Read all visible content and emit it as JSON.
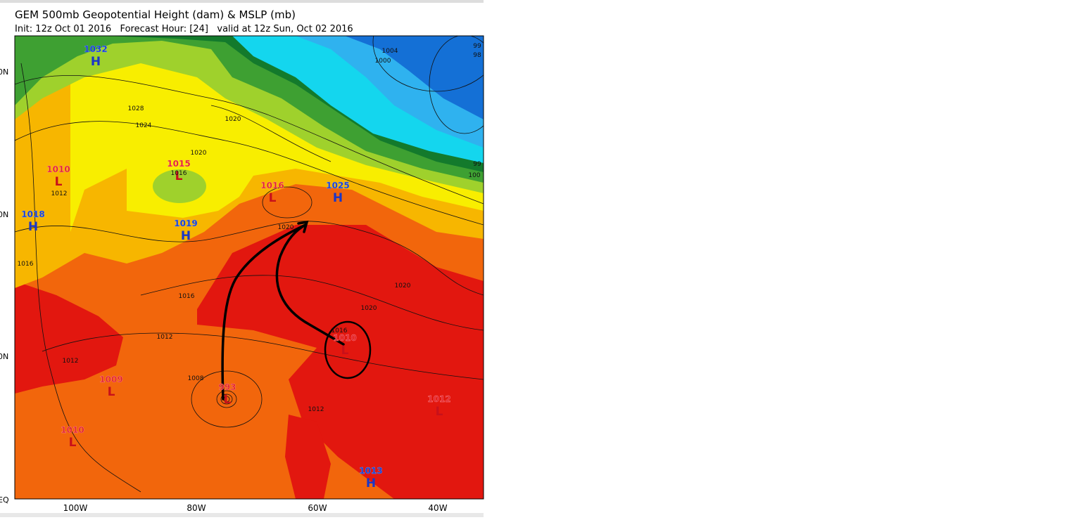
{
  "header": {
    "title": "GEM 500mb Geopotential Height (dam) & MSLP (mb)",
    "subtitle": "Init: 12z Oct 01 2016   Forecast Hour: [24]   valid at 12z Sun, Oct 02 2016"
  },
  "axes": {
    "lat_labels": [
      "0N",
      "0N",
      "0N",
      "EQ"
    ],
    "lon_labels": [
      "100W",
      "80W",
      "60W",
      "40W"
    ]
  },
  "centers": [
    {
      "value": "1032",
      "symbol": "H"
    },
    {
      "value": "1010",
      "symbol": "L"
    },
    {
      "value": "1018",
      "symbol": "H"
    },
    {
      "value": "1015",
      "symbol": "L"
    },
    {
      "value": "1019",
      "symbol": "H"
    },
    {
      "value": "1016",
      "symbol": "L"
    },
    {
      "value": "1025",
      "symbol": "H"
    },
    {
      "value": "1010",
      "symbol": "L"
    },
    {
      "value": "1009",
      "symbol": "L"
    },
    {
      "value": "993",
      "symbol": "L"
    },
    {
      "value": "1010",
      "symbol": "L"
    },
    {
      "value": "1012",
      "symbol": "L"
    },
    {
      "value": "1013",
      "symbol": "H"
    }
  ],
  "contour_labels": [
    "1004",
    "1000",
    "1028",
    "1024",
    "1020",
    "1020",
    "1016",
    "1012",
    "1016",
    "1020",
    "1020",
    "1020",
    "1016",
    "1012",
    "1012",
    "1008",
    "1012",
    "1016",
    "99",
    "98",
    "99",
    "100"
  ]
}
